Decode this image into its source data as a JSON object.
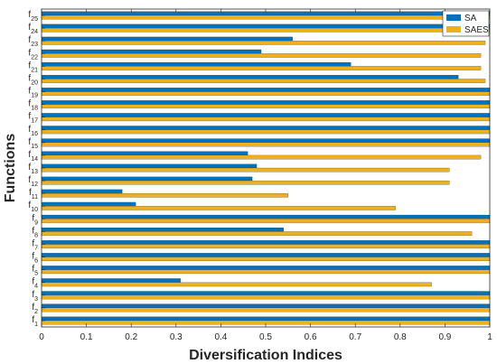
{
  "chart_data": {
    "type": "bar",
    "orientation": "horizontal",
    "xlabel": "Diversification Indices",
    "ylabel": "Functions",
    "xlim": [
      0,
      1
    ],
    "xticks": [
      "0",
      "0.1",
      "0.2",
      "0.3",
      "0.4",
      "0.5",
      "0.6",
      "0.7",
      "0.8",
      "0.9",
      "1"
    ],
    "categories": [
      {
        "base": "f",
        "sub": "1"
      },
      {
        "base": "f",
        "sub": "2"
      },
      {
        "base": "f",
        "sub": "3"
      },
      {
        "base": "f",
        "sub": "4"
      },
      {
        "base": "f",
        "sub": "5"
      },
      {
        "base": "f",
        "sub": "6"
      },
      {
        "base": "f",
        "sub": "7"
      },
      {
        "base": "f",
        "sub": "8"
      },
      {
        "base": "f",
        "sub": "9"
      },
      {
        "base": "f",
        "sub": "10"
      },
      {
        "base": "f",
        "sub": "11"
      },
      {
        "base": "f",
        "sub": "12"
      },
      {
        "base": "f",
        "sub": "13"
      },
      {
        "base": "f",
        "sub": "14"
      },
      {
        "base": "f",
        "sub": "15"
      },
      {
        "base": "f",
        "sub": "16"
      },
      {
        "base": "f",
        "sub": "17"
      },
      {
        "base": "f",
        "sub": "18"
      },
      {
        "base": "f",
        "sub": "19"
      },
      {
        "base": "f",
        "sub": "20"
      },
      {
        "base": "f",
        "sub": "21"
      },
      {
        "base": "f",
        "sub": "22"
      },
      {
        "base": "f",
        "sub": "23"
      },
      {
        "base": "f",
        "sub": "24"
      },
      {
        "base": "f",
        "sub": "25"
      }
    ],
    "series": [
      {
        "name": "SA",
        "color": "#0072bd",
        "values": [
          1,
          1,
          1,
          0.31,
          1,
          1,
          1,
          0.54,
          1,
          0.21,
          0.18,
          0.47,
          0.48,
          0.46,
          1,
          1,
          1,
          1,
          1,
          0.93,
          0.69,
          0.49,
          0.56,
          1,
          1
        ]
      },
      {
        "name": "SAES",
        "color": "#edb120",
        "values": [
          1,
          1,
          1,
          0.87,
          1,
          1,
          1,
          0.96,
          1,
          0.79,
          0.55,
          0.91,
          0.91,
          0.98,
          1,
          1,
          1,
          1,
          1,
          0.99,
          0.98,
          0.98,
          0.99,
          1,
          1
        ]
      }
    ],
    "legend_position": "top-right",
    "grid": false
  }
}
